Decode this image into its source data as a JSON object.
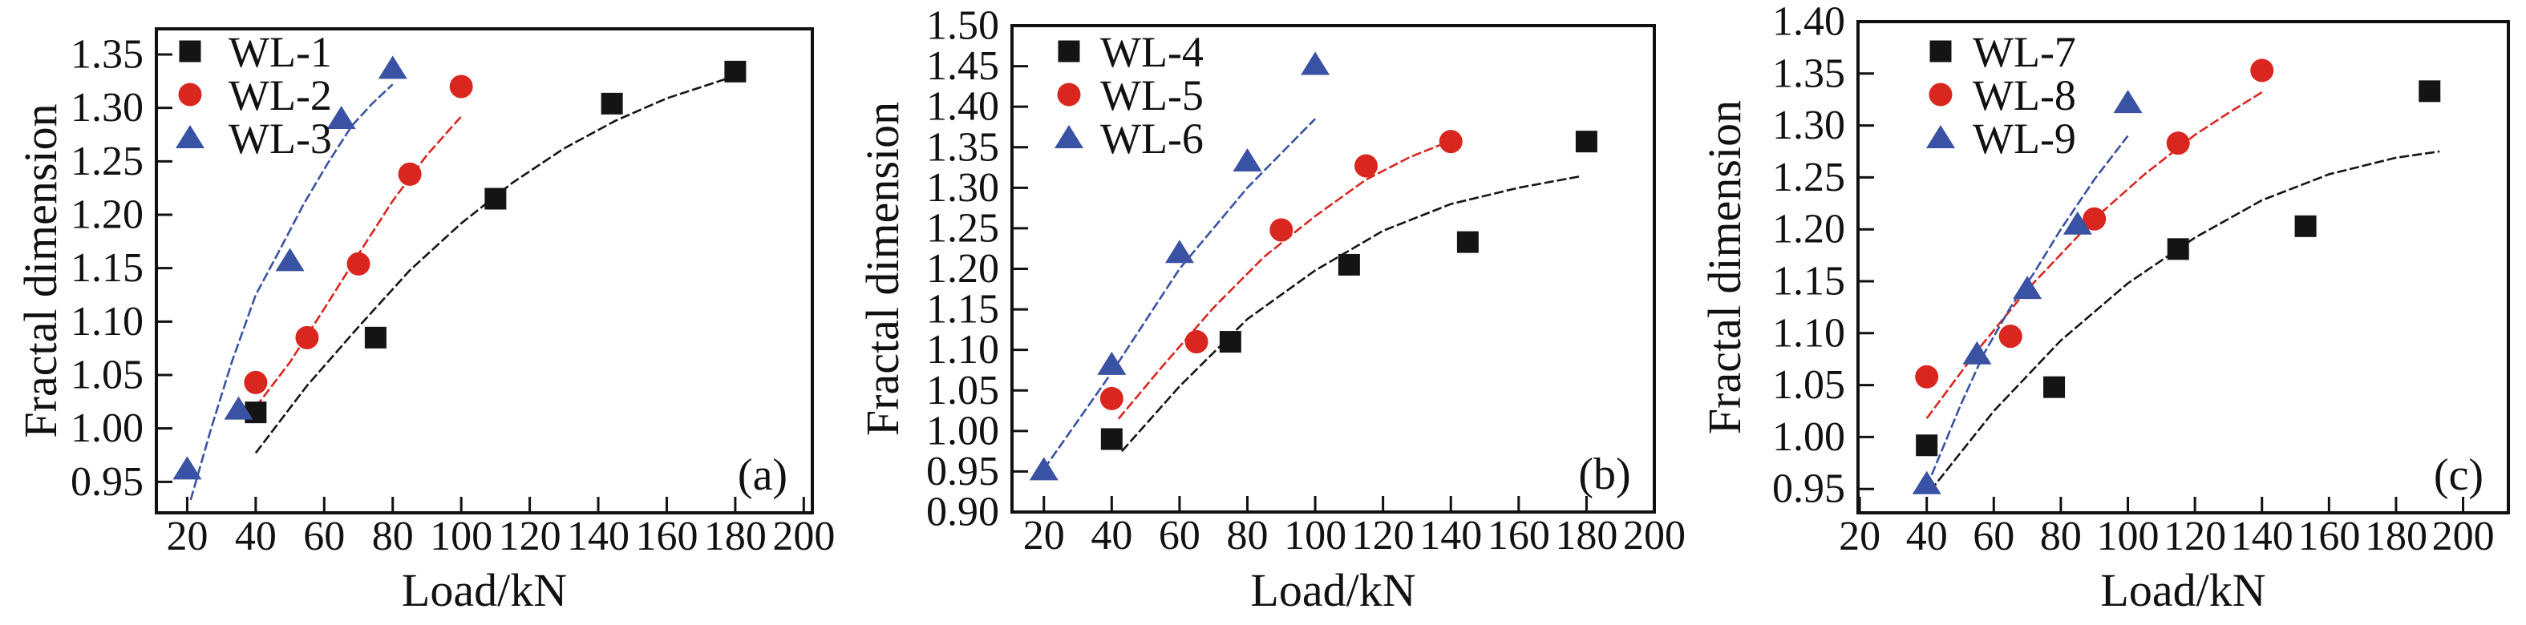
{
  "figure": {
    "background": "#ffffff",
    "colors": {
      "black": "#141414",
      "red": "#d9261f",
      "blue": "#3952a3"
    }
  },
  "chart_data": [
    {
      "panel_annotation": "(a)",
      "type": "scatter",
      "xlabel": "Load/kN",
      "ylabel": "Fractal dimension",
      "xlim": [
        11,
        202.5
      ],
      "ylim": [
        0.921,
        1.374
      ],
      "xticks": [
        20,
        40,
        60,
        80,
        100,
        120,
        140,
        160,
        180,
        200
      ],
      "yticks": [
        0.95,
        1.0,
        1.05,
        1.1,
        1.15,
        1.2,
        1.25,
        1.3,
        1.35
      ],
      "grid": false,
      "legend_position": "top-left",
      "series": [
        {
          "name": "WL-1",
          "marker": "square",
          "color_key": "black",
          "points": [
            [
              40,
              1.015
            ],
            [
              75,
              1.085
            ],
            [
              110,
              1.215
            ],
            [
              144,
              1.304
            ],
            [
              180,
              1.334
            ]
          ],
          "fit_line": [
            [
              40,
              0.977
            ],
            [
              55,
              1.04
            ],
            [
              70,
              1.095
            ],
            [
              85,
              1.148
            ],
            [
              100,
              1.192
            ],
            [
              115,
              1.23
            ],
            [
              130,
              1.262
            ],
            [
              145,
              1.288
            ],
            [
              160,
              1.309
            ],
            [
              180,
              1.33
            ]
          ]
        },
        {
          "name": "WL-2",
          "marker": "circle",
          "color_key": "red",
          "points": [
            [
              40,
              1.043
            ],
            [
              55,
              1.085
            ],
            [
              70,
              1.154
            ],
            [
              85,
              1.238
            ],
            [
              100,
              1.32
            ]
          ],
          "fit_line": [
            [
              40,
              1.02
            ],
            [
              50,
              1.062
            ],
            [
              60,
              1.112
            ],
            [
              70,
              1.163
            ],
            [
              80,
              1.213
            ],
            [
              90,
              1.256
            ],
            [
              100,
              1.292
            ]
          ]
        },
        {
          "name": "WL-3",
          "marker": "triangle",
          "color_key": "blue",
          "points": [
            [
              20,
              0.962
            ],
            [
              35,
              1.018
            ],
            [
              50,
              1.157
            ],
            [
              65,
              1.29
            ],
            [
              80,
              1.337
            ]
          ],
          "fit_line": [
            [
              21,
              0.933
            ],
            [
              27,
              1.0
            ],
            [
              33,
              1.062
            ],
            [
              40,
              1.125
            ],
            [
              47,
              1.167
            ],
            [
              54,
              1.21
            ],
            [
              61,
              1.248
            ],
            [
              68,
              1.283
            ],
            [
              74,
              1.304
            ],
            [
              80,
              1.322
            ]
          ]
        }
      ]
    },
    {
      "panel_annotation": "(b)",
      "type": "scatter",
      "xlabel": "Load/kN",
      "ylabel": "Fractal dimension",
      "xlim": [
        10.6,
        200
      ],
      "ylim": [
        0.9,
        1.5
      ],
      "xticks": [
        20,
        40,
        60,
        80,
        100,
        120,
        140,
        160,
        180,
        200
      ],
      "yticks": [
        0.9,
        0.95,
        1.0,
        1.05,
        1.1,
        1.15,
        1.2,
        1.25,
        1.3,
        1.35,
        1.4,
        1.45,
        1.5
      ],
      "grid": false,
      "legend_position": "top-left",
      "series": [
        {
          "name": "WL-4",
          "marker": "square",
          "color_key": "black",
          "points": [
            [
              40,
              0.99
            ],
            [
              75,
              1.11
            ],
            [
              110,
              1.205
            ],
            [
              145,
              1.233
            ],
            [
              180,
              1.357
            ]
          ],
          "fit_line": [
            [
              43,
              0.975
            ],
            [
              60,
              1.055
            ],
            [
              80,
              1.138
            ],
            [
              100,
              1.198
            ],
            [
              120,
              1.247
            ],
            [
              140,
              1.28
            ],
            [
              160,
              1.3
            ],
            [
              178,
              1.314
            ]
          ]
        },
        {
          "name": "WL-5",
          "marker": "circle",
          "color_key": "red",
          "points": [
            [
              40,
              1.04
            ],
            [
              65,
              1.11
            ],
            [
              90,
              1.248
            ],
            [
              115,
              1.327
            ],
            [
              140,
              1.357
            ]
          ],
          "fit_line": [
            [
              42,
              1.015
            ],
            [
              55,
              1.08
            ],
            [
              70,
              1.152
            ],
            [
              85,
              1.215
            ],
            [
              100,
              1.265
            ],
            [
              115,
              1.31
            ],
            [
              128,
              1.338
            ],
            [
              140,
              1.358
            ]
          ]
        },
        {
          "name": "WL-6",
          "marker": "triangle",
          "color_key": "blue",
          "points": [
            [
              20,
              0.952
            ],
            [
              40,
              1.082
            ],
            [
              60,
              1.22
            ],
            [
              80,
              1.333
            ],
            [
              100,
              1.452
            ]
          ],
          "fit_line": [
            [
              20,
              0.953
            ],
            [
              40,
              1.072
            ],
            [
              60,
              1.2
            ],
            [
              80,
              1.3
            ],
            [
              100,
              1.385
            ]
          ]
        }
      ]
    },
    {
      "panel_annotation": "(c)",
      "type": "scatter",
      "xlabel": "Load/kN",
      "ylabel": "Fractal dimension",
      "xlim": [
        19.5,
        213.5
      ],
      "ylim": [
        0.927,
        1.4
      ],
      "xticks": [
        20,
        40,
        60,
        80,
        100,
        120,
        140,
        160,
        180,
        200
      ],
      "yticks": [
        0.95,
        1.0,
        1.05,
        1.1,
        1.15,
        1.2,
        1.25,
        1.3,
        1.35,
        1.4
      ],
      "grid": false,
      "legend_position": "top-left",
      "series": [
        {
          "name": "WL-7",
          "marker": "square",
          "color_key": "black",
          "points": [
            [
              40,
              0.992
            ],
            [
              78,
              1.048
            ],
            [
              115,
              1.181
            ],
            [
              153,
              1.203
            ],
            [
              190,
              1.333
            ]
          ],
          "fit_line": [
            [
              41,
              0.948
            ],
            [
              60,
              1.025
            ],
            [
              80,
              1.093
            ],
            [
              100,
              1.148
            ],
            [
              120,
              1.192
            ],
            [
              140,
              1.228
            ],
            [
              160,
              1.253
            ],
            [
              180,
              1.269
            ],
            [
              193,
              1.275
            ]
          ]
        },
        {
          "name": "WL-8",
          "marker": "circle",
          "color_key": "red",
          "points": [
            [
              40,
              1.058
            ],
            [
              65,
              1.097
            ],
            [
              90,
              1.21
            ],
            [
              115,
              1.283
            ],
            [
              140,
              1.353
            ]
          ],
          "fit_line": [
            [
              40,
              1.018
            ],
            [
              55,
              1.083
            ],
            [
              70,
              1.142
            ],
            [
              90,
              1.21
            ],
            [
              105,
              1.253
            ],
            [
              120,
              1.291
            ],
            [
              130,
              1.312
            ],
            [
              140,
              1.332
            ]
          ]
        },
        {
          "name": "WL-9",
          "marker": "triangle",
          "color_key": "blue",
          "points": [
            [
              40,
              0.955
            ],
            [
              55,
              1.08
            ],
            [
              70,
              1.143
            ],
            [
              85,
              1.205
            ],
            [
              100,
              1.322
            ]
          ],
          "fit_line": [
            [
              40,
              0.952
            ],
            [
              50,
              1.03
            ],
            [
              57,
              1.08
            ],
            [
              65,
              1.125
            ],
            [
              72,
              1.158
            ],
            [
              80,
              1.2
            ],
            [
              90,
              1.248
            ],
            [
              100,
              1.29
            ]
          ]
        }
      ]
    }
  ]
}
